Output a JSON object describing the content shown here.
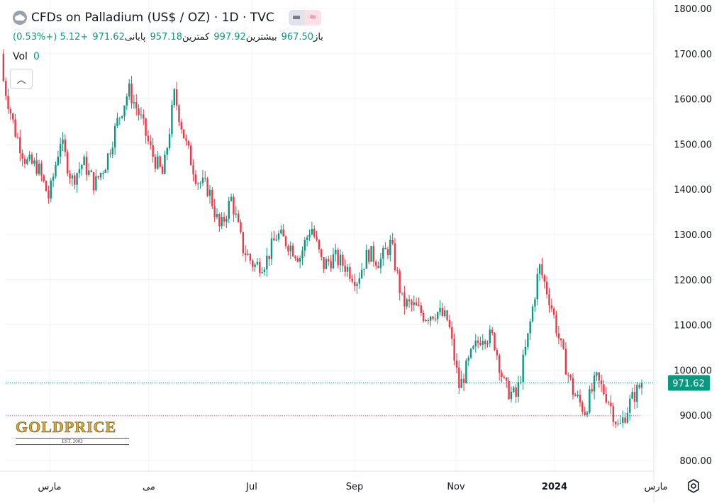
{
  "header": {
    "title": "CFDs on Palladium (US$ / OZ) · 1D · TVC",
    "ohlc": [
      {
        "label": "باز",
        "value": "967.50"
      },
      {
        "label": "بیشترین",
        "value": "997.92"
      },
      {
        "label": "کمترین",
        "value": "957.18"
      },
      {
        "label": "پایانی",
        "value": "971.62"
      },
      {
        "label": "",
        "value": "+5.12 (+0.53%)"
      }
    ],
    "volume_label": "Vol",
    "volume_value": "0",
    "pill_icons": [
      "minus-icon",
      "approx-icon"
    ]
  },
  "logo": {
    "text": "GOLDPRICE",
    "sub": "EST. 2002"
  },
  "colors": {
    "up": "#089981",
    "down": "#f23645",
    "grid": "#f0f3fa",
    "price_line": "#089981",
    "dotted_red": "#f7525f"
  },
  "chart_data": {
    "type": "candlestick",
    "ylim": [
      780,
      1810
    ],
    "yticks": [
      "1800.00",
      "1700.00",
      "1600.00",
      "1500.00",
      "1400.00",
      "1300.00",
      "1200.00",
      "1100.00",
      "1000.00",
      "900.00",
      "800.00"
    ],
    "xticks": [
      "مارس",
      "می",
      "Jul",
      "Sep",
      "Nov",
      "2024",
      "مارس"
    ],
    "last_price": "971.62",
    "last_price_value": 971.62,
    "ref_line_value": 899,
    "x": [
      "2023-02-01",
      "2023-02-08",
      "2023-02-15",
      "2023-02-22",
      "2023-03-01",
      "2023-03-08",
      "2023-03-15",
      "2023-03-22",
      "2023-03-29",
      "2023-04-05",
      "2023-04-12",
      "2023-04-19",
      "2023-04-26",
      "2023-05-03",
      "2023-05-10",
      "2023-05-17",
      "2023-05-24",
      "2023-05-31",
      "2023-06-07",
      "2023-06-14",
      "2023-06-21",
      "2023-06-28",
      "2023-07-05",
      "2023-07-12",
      "2023-07-19",
      "2023-07-26",
      "2023-08-02",
      "2023-08-09",
      "2023-08-16",
      "2023-08-23",
      "2023-08-30",
      "2023-09-06",
      "2023-09-13",
      "2023-09-20",
      "2023-09-27",
      "2023-10-04",
      "2023-10-11",
      "2023-10-18",
      "2023-10-25",
      "2023-11-01",
      "2023-11-08",
      "2023-11-15",
      "2023-11-22",
      "2023-11-29",
      "2023-12-06",
      "2023-12-13",
      "2023-12-20",
      "2023-12-27",
      "2024-01-03",
      "2024-01-10",
      "2024-01-17",
      "2024-01-24",
      "2024-01-31",
      "2024-02-07",
      "2024-02-14",
      "2024-02-21",
      "2024-02-28"
    ],
    "close": [
      1640,
      1530,
      1460,
      1450,
      1380,
      1510,
      1420,
      1460,
      1410,
      1460,
      1550,
      1620,
      1560,
      1480,
      1430,
      1610,
      1500,
      1420,
      1400,
      1310,
      1380,
      1270,
      1230,
      1240,
      1300,
      1280,
      1250,
      1320,
      1230,
      1250,
      1230,
      1200,
      1260,
      1240,
      1280,
      1150,
      1140,
      1120,
      1130,
      1110,
      960,
      1030,
      1080,
      1070,
      960,
      940,
      1070,
      1230,
      1150,
      1040,
      950,
      910,
      980,
      940,
      870,
      930,
      971.62
    ]
  }
}
